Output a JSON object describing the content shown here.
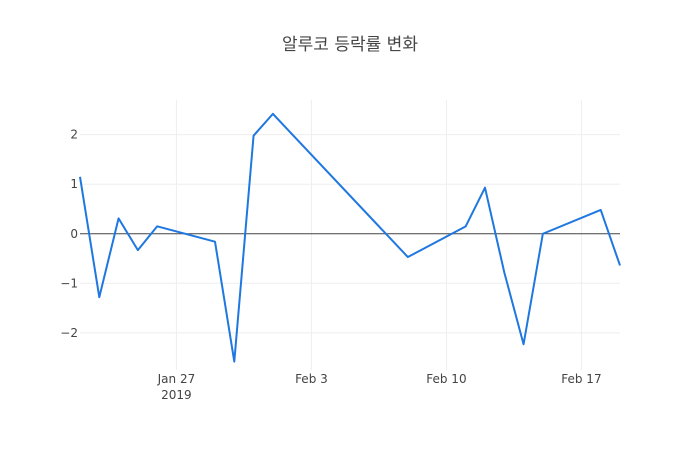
{
  "chart_data": {
    "type": "line",
    "title": "알루코 등락률 변화",
    "xlabel": "",
    "ylabel": "",
    "x_axis_type": "date",
    "xlim": [
      "2019-01-22",
      "2019-02-19"
    ],
    "ylim": [
      -2.75,
      2.7
    ],
    "grid": true,
    "legend": "none",
    "x_ticks": [
      {
        "date": "2019-01-27",
        "label": "Jan 27",
        "sublabel": "2019"
      },
      {
        "date": "2019-02-03",
        "label": "Feb 3",
        "sublabel": ""
      },
      {
        "date": "2019-02-10",
        "label": "Feb 10",
        "sublabel": ""
      },
      {
        "date": "2019-02-17",
        "label": "Feb 17",
        "sublabel": ""
      }
    ],
    "y_ticks": [
      {
        "value": 2,
        "label": "2"
      },
      {
        "value": 1,
        "label": "1"
      },
      {
        "value": 0,
        "label": "0"
      },
      {
        "value": -1,
        "label": "−1"
      },
      {
        "value": -2,
        "label": "−2"
      }
    ],
    "series": [
      {
        "color": "#1f77e0",
        "x": [
          "2019-01-22",
          "2019-01-23",
          "2019-01-24",
          "2019-01-25",
          "2019-01-26",
          "2019-01-29",
          "2019-01-30",
          "2019-01-31",
          "2019-02-01",
          "2019-02-08",
          "2019-02-11",
          "2019-02-12",
          "2019-02-13",
          "2019-02-14",
          "2019-02-15",
          "2019-02-18",
          "2019-02-19"
        ],
        "y": [
          1.15,
          -1.28,
          0.31,
          -0.33,
          0.15,
          -0.16,
          -2.58,
          1.98,
          2.42,
          -0.47,
          0.15,
          0.93,
          -0.78,
          -2.23,
          0.0,
          0.48,
          -0.64
        ]
      }
    ]
  }
}
